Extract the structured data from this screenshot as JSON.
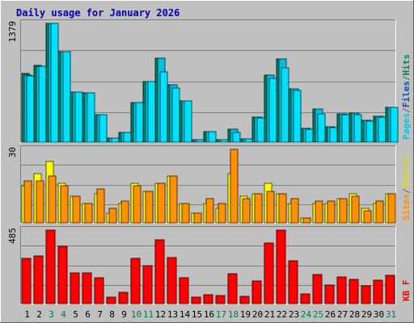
{
  "chart_data": {
    "type": "bar",
    "title": "Daily usage for January 2026",
    "categories": [
      "1",
      "2",
      "3",
      "4",
      "5",
      "6",
      "7",
      "8",
      "9",
      "10",
      "11",
      "12",
      "13",
      "14",
      "15",
      "16",
      "17",
      "18",
      "19",
      "20",
      "21",
      "22",
      "23",
      "24",
      "25",
      "26",
      "27",
      "28",
      "29",
      "30",
      "31"
    ],
    "weekend_days": [
      3,
      4,
      10,
      11,
      17,
      18,
      24,
      25,
      31
    ],
    "panels": [
      {
        "id": "hits",
        "ymax_label": "1379",
        "ymax": 1379,
        "legend": [
          {
            "text": "Pages",
            "color": "#00c8e0"
          },
          {
            "text": "/",
            "color": "#606060"
          },
          {
            "text": "Files",
            "color": "#0050c0"
          },
          {
            "text": "/",
            "color": "#606060"
          },
          {
            "text": "Hits",
            "color": "#008060"
          }
        ],
        "series": [
          {
            "name": "Hits",
            "color": "#008060",
            "values": [
              800,
              890,
              1379,
              1050,
              580,
              570,
              320,
              50,
              110,
              460,
              700,
              980,
              670,
              480,
              30,
              120,
              30,
              150,
              40,
              290,
              780,
              970,
              620,
              160,
              380,
              180,
              330,
              340,
              250,
              300,
              400
            ]
          },
          {
            "name": "Files",
            "color": "#00c0e0",
            "values": [
              780,
              880,
              1379,
              1050,
              580,
              570,
              320,
              50,
              110,
              460,
              700,
              980,
              670,
              480,
              30,
              120,
              30,
              150,
              40,
              290,
              780,
              970,
              620,
              160,
              380,
              180,
              330,
              340,
              250,
              300,
              400
            ]
          },
          {
            "name": "Pages",
            "color": "#00e0ff",
            "values": [
              770,
              880,
              1379,
              1050,
              580,
              570,
              320,
              50,
              110,
              460,
              700,
              820,
              630,
              480,
              30,
              120,
              30,
              110,
              40,
              280,
              740,
              860,
              600,
              150,
              330,
              170,
              320,
              320,
              240,
              290,
              400
            ]
          }
        ]
      },
      {
        "id": "visits",
        "ymax_label": "30",
        "ymax": 30,
        "legend": [
          {
            "text": "Sites",
            "color": "#ff9000"
          },
          {
            "text": "/",
            "color": "#606060"
          },
          {
            "text": "Visits",
            "color": "#e0e000"
          }
        ],
        "series": [
          {
            "name": "Visits",
            "color": "#ffff00",
            "values": [
              15,
              20,
              25,
              16,
              11,
              8,
              12,
              4,
              8,
              16,
              13,
              16,
              19,
              8,
              4,
              8,
              6,
              20,
              11,
              12,
              16,
              12,
              8,
              2,
              8,
              8,
              10,
              12,
              6,
              8,
              12
            ]
          },
          {
            "name": "Sites",
            "color": "#ff9000",
            "values": [
              17,
              17,
              19,
              15,
              11,
              8,
              14,
              6,
              9,
              15,
              13,
              16,
              19,
              8,
              4,
              10,
              8,
              30,
              10,
              12,
              13,
              12,
              10,
              2,
              9,
              9,
              10,
              11,
              5,
              9,
              12
            ]
          }
        ]
      },
      {
        "id": "kbytes",
        "ymax_label": "485",
        "ymax": 485,
        "legend": [
          {
            "text": "KB F",
            "color": "#ff0000"
          }
        ],
        "series": [
          {
            "name": "KB F",
            "color": "#ff0000",
            "values": [
              300,
              315,
              485,
              380,
              200,
              205,
              170,
              45,
              75,
              300,
              250,
              420,
              305,
              170,
              45,
              60,
              55,
              195,
              50,
              150,
              400,
              485,
              285,
              65,
              190,
              125,
              175,
              160,
              115,
              155,
              185
            ]
          }
        ]
      }
    ]
  }
}
